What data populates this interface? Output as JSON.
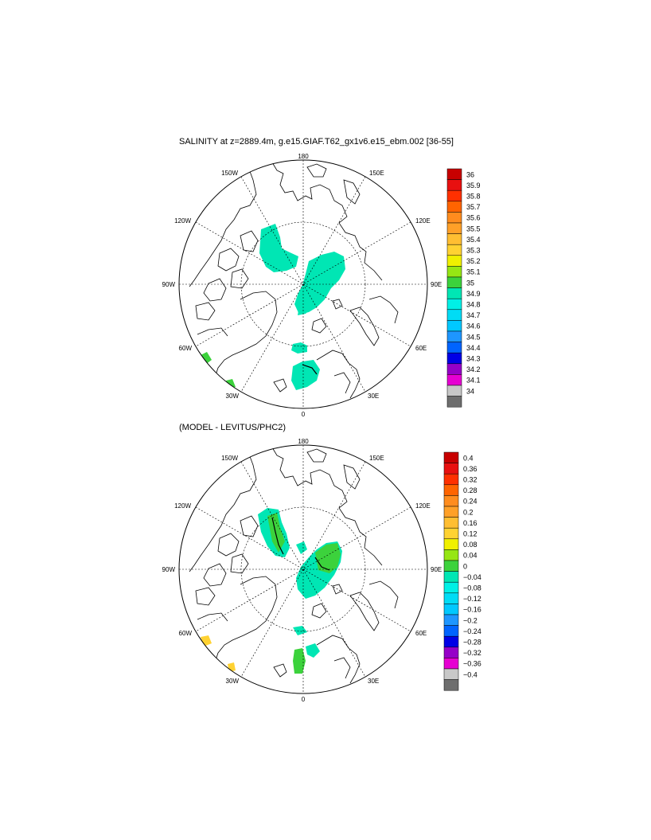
{
  "panels": [
    {
      "title": "SALINITY at z=2889.4m, g.e15.GIAF.T62_gx1v6.e15_ebm.002 [36-55]",
      "lon_labels": [
        "180",
        "150E",
        "120E",
        "90E",
        "60E",
        "30E",
        "0",
        "30W",
        "60W",
        "90W",
        "120W",
        "150W"
      ],
      "colorbar": {
        "levels": [
          "36",
          "35.9",
          "35.8",
          "35.7",
          "35.6",
          "35.5",
          "35.4",
          "35.3",
          "35.2",
          "35.1",
          "35",
          "34.9",
          "34.8",
          "34.7",
          "34.6",
          "34.5",
          "34.4",
          "34.3",
          "34.2",
          "34.1",
          "34"
        ],
        "colors": [
          "#c80000",
          "#e81010",
          "#ff3000",
          "#ff6400",
          "#ff8c1e",
          "#ffa028",
          "#ffbe32",
          "#ffd232",
          "#f0f000",
          "#96e614",
          "#3cd23c",
          "#00e6b4",
          "#00f0e6",
          "#00dcf5",
          "#00c8ff",
          "#1e96ff",
          "#0064ff",
          "#0000e6",
          "#9600c8",
          "#e600d2",
          "#c8c8c8",
          "#6e6e6e"
        ]
      }
    },
    {
      "title": "(MODEL - LEVITUS/PHC2)",
      "lon_labels": [
        "180",
        "150E",
        "120E",
        "90E",
        "60E",
        "30E",
        "0",
        "30W",
        "60W",
        "90W",
        "120W",
        "150W"
      ],
      "colorbar": {
        "levels": [
          "0.4",
          "0.36",
          "0.32",
          "0.28",
          "0.24",
          "0.2",
          "0.16",
          "0.12",
          "0.08",
          "0.04",
          "0",
          "−0.04",
          "−0.08",
          "−0.12",
          "−0.16",
          "−0.2",
          "−0.24",
          "−0.28",
          "−0.32",
          "−0.36",
          "−0.4"
        ],
        "colors": [
          "#c80000",
          "#e81010",
          "#ff3000",
          "#ff6400",
          "#ff8c1e",
          "#ffa028",
          "#ffbe32",
          "#ffd232",
          "#f0f000",
          "#96e614",
          "#3cd23c",
          "#00e6b4",
          "#00f0e6",
          "#00dcf5",
          "#00c8ff",
          "#1e96ff",
          "#0064ff",
          "#0000e6",
          "#9600c8",
          "#e600d2",
          "#c8c8c8",
          "#6e6e6e"
        ]
      }
    }
  ]
}
